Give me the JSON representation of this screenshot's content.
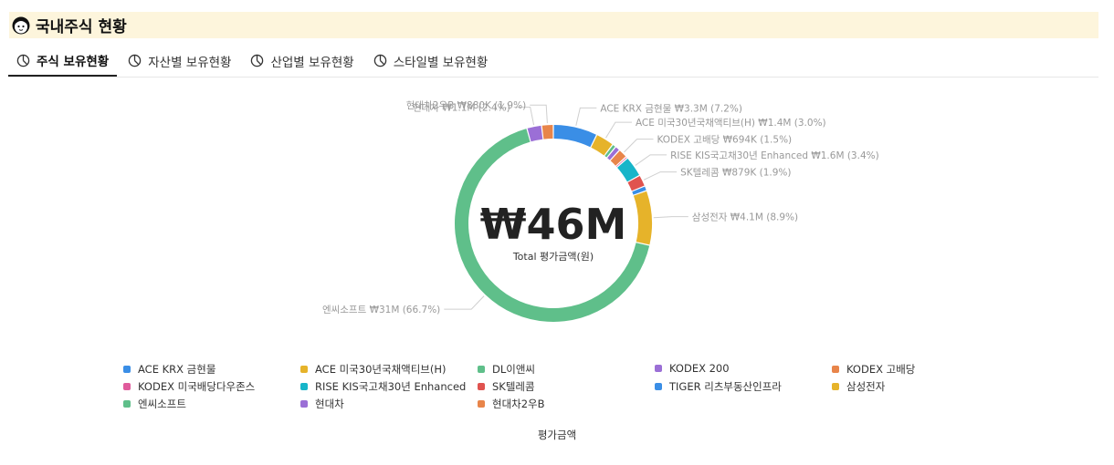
{
  "header": {
    "title": "국내주식 현황",
    "icon": "avatar-icon"
  },
  "tabs": [
    {
      "label": "주식 보유현황",
      "active": true,
      "icon": "pie-chart-icon"
    },
    {
      "label": "자산별 보유현황",
      "active": false,
      "icon": "pie-chart-icon"
    },
    {
      "label": "산업별 보유현황",
      "active": false,
      "icon": "pie-chart-icon"
    },
    {
      "label": "스타일별 보유현황",
      "active": false,
      "icon": "pie-chart-icon"
    }
  ],
  "chart_data": {
    "type": "pie",
    "donut": true,
    "center_value": "₩46M",
    "center_label": "Total 평가금액(원)",
    "xlabel": "평가금액",
    "slices": [
      {
        "name": "ACE KRX 금현물",
        "label": "ACE KRX 금현물  ₩3.3M (7.2%)",
        "percent": 7.2,
        "color": "#3a8ee6"
      },
      {
        "name": "ACE 미국30년국채액티브(H)",
        "label": "ACE 미국30년국채액티브(H)  ₩1.4M (3.0%)",
        "percent": 3.0,
        "color": "#e6b32a"
      },
      {
        "name": "DL이앤씨",
        "label": "",
        "percent": 0.6,
        "color": "#5fbf8a"
      },
      {
        "name": "KODEX 200",
        "label": "",
        "percent": 0.8,
        "color": "#9b6fd6"
      },
      {
        "name": "KODEX 고배당",
        "label": "KODEX 고배당  ₩694K (1.5%)",
        "percent": 1.5,
        "color": "#e8854a"
      },
      {
        "name": "KODEX 미국배당다우존스",
        "label": "",
        "percent": 0.3,
        "color": "#e05b9c"
      },
      {
        "name": "RISE KIS국고채30년 Enhanced",
        "label": "RISE KIS국고채30년 Enhanced  ₩1.6M (3.4%)",
        "percent": 3.4,
        "color": "#17b5c9"
      },
      {
        "name": "SK텔레콤",
        "label": "SK텔레콤  ₩879K (1.9%)",
        "percent": 1.9,
        "color": "#e0534f"
      },
      {
        "name": "TIGER 리츠부동산인프라",
        "label": "",
        "percent": 0.8,
        "color": "#3a8ee6"
      },
      {
        "name": "삼성전자",
        "label": "삼성전자  ₩4.1M (8.9%)",
        "percent": 8.9,
        "color": "#e6b32a"
      },
      {
        "name": "엔씨소프트",
        "label": "엔씨소프트  ₩31M (66.7%)",
        "percent": 66.7,
        "color": "#5fbf8a"
      },
      {
        "name": "현대차",
        "label": "현대차  ₩1.1M (2.4%)",
        "percent": 2.4,
        "color": "#9b6fd6"
      },
      {
        "name": "현대차2우B",
        "label": "현대차2우B  ₩880K (1.9%)",
        "percent": 1.9,
        "color": "#e8854a"
      }
    ],
    "legend": [
      {
        "name": "ACE KRX 금현물",
        "color": "#3a8ee6"
      },
      {
        "name": "ACE 미국30년국채액티브(H)",
        "color": "#e6b32a"
      },
      {
        "name": "DL이앤씨",
        "color": "#5fbf8a"
      },
      {
        "name": "KODEX 200",
        "color": "#9b6fd6"
      },
      {
        "name": "KODEX 고배당",
        "color": "#e8854a"
      },
      {
        "name": "KODEX 미국배당다우존스",
        "color": "#e05b9c"
      },
      {
        "name": "RISE KIS국고채30년 Enhanced",
        "color": "#17b5c9"
      },
      {
        "name": "SK텔레콤",
        "color": "#e0534f"
      },
      {
        "name": "TIGER 리츠부동산인프라",
        "color": "#3a8ee6"
      },
      {
        "name": "삼성전자",
        "color": "#e6b32a"
      },
      {
        "name": "엔씨소프트",
        "color": "#5fbf8a"
      },
      {
        "name": "현대차",
        "color": "#9b6fd6"
      },
      {
        "name": "현대차2우B",
        "color": "#e8854a"
      }
    ],
    "legend_position": "bottom"
  }
}
